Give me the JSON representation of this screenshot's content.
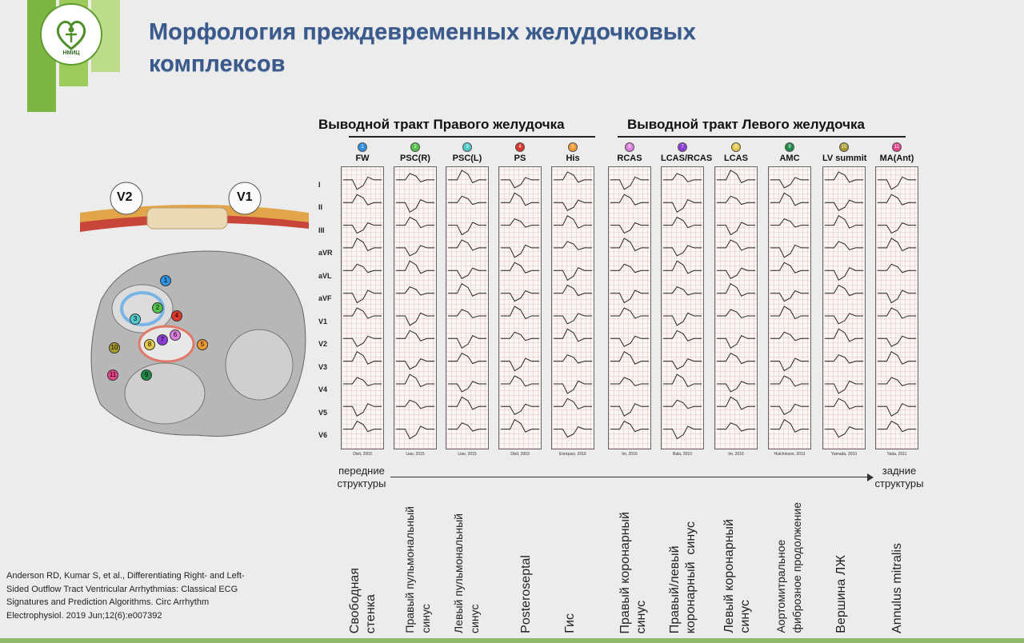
{
  "title": "Морфология преждевременных желудочковых комплексов",
  "logo": {
    "text": "НМИЦ"
  },
  "sections": {
    "right": "Выводной тракт Правого желудочка",
    "left": "Выводной тракт Левого желудочка"
  },
  "diagram": {
    "v2": "V2",
    "v1": "V1"
  },
  "leads": [
    "I",
    "II",
    "III",
    "aVR",
    "aVL",
    "aVF",
    "V1",
    "V2",
    "V3",
    "V4",
    "V5",
    "V6"
  ],
  "columns": [
    {
      "num": "1",
      "label": "FW",
      "color": "#2f8fe0",
      "cite": "Dixit, 2003"
    },
    {
      "num": "2",
      "label": "PSC(R)",
      "color": "#55c24a",
      "cite": "Liao, 2015"
    },
    {
      "num": "3",
      "label": "PSC(L)",
      "color": "#52c9c9",
      "cite": "Liao, 2015"
    },
    {
      "num": "4",
      "label": "PS",
      "color": "#e0352b",
      "cite": "Dixit, 2003"
    },
    {
      "num": "5",
      "label": "His",
      "color": "#f09a30",
      "cite": "Enriquez, 2016"
    },
    {
      "num": "6",
      "label": "RCAS",
      "color": "#dc7fe0",
      "cite": "Im, 2016"
    },
    {
      "num": "7",
      "label": "LCAS/RCAS",
      "color": "#8a3ed6",
      "cite": "Bala, 2010"
    },
    {
      "num": "8",
      "label": "LCAS",
      "color": "#e6c84a",
      "cite": "Im, 2016"
    },
    {
      "num": "9",
      "label": "AMC",
      "color": "#1e8a4a",
      "cite": "Hutchinson, 2013"
    },
    {
      "num": "10",
      "label": "LV summit",
      "color": "#a89a2a",
      "cite": "Yamada, 2010"
    },
    {
      "num": "11",
      "label": "MA(Ant)",
      "color": "#e8458a",
      "cite": "Yada, 2011"
    }
  ],
  "axis": {
    "front": "передние структуры",
    "back": "задние структуры"
  },
  "bottom_labels": [
    "Свободная\nстенка",
    "Правый пульмональный\nсинус",
    "Левый пульмональный\nсинус",
    "Posteroseptal",
    "Гис",
    "Правый коронарный\nсинус",
    "Правый/левый\nкоронарный  синус",
    "Левый коронарный\nсинус",
    "Аортомитральное\nфиброзное продолжение",
    "Вершина ЛЖ",
    "Annulus mitralis"
  ],
  "reference": "Anderson RD, Kumar S, et al., Differentiating Right- and Left-Sided Outflow Tract Ventricular Arrhythmias: Classical ECG Signatures and Prediction Algorithms. Circ Arrhythm Electrophysiol. 2019 Jun;12(6):e007392"
}
